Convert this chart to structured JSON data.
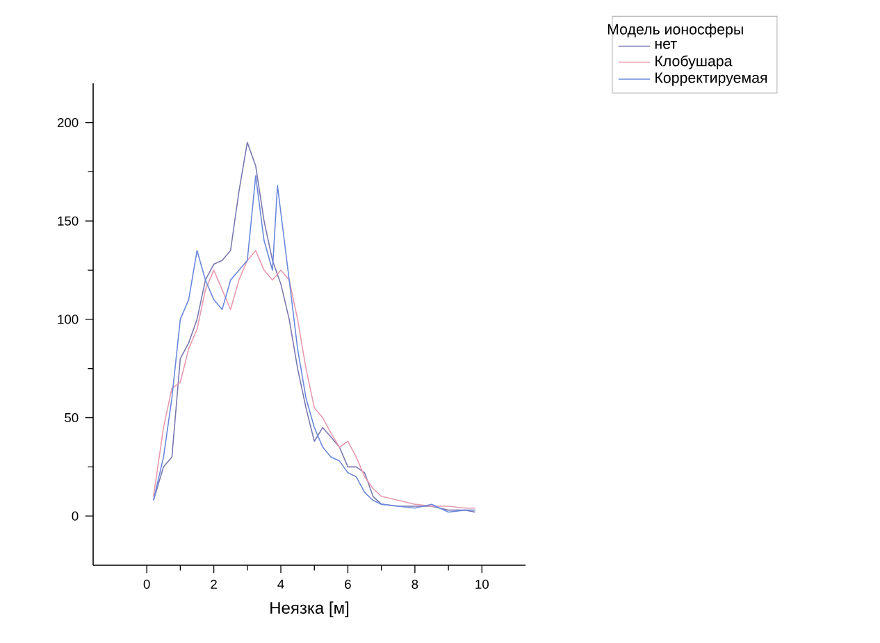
{
  "chart_data": {
    "type": "line",
    "xlabel": "Неязка [м]",
    "legend_title": "Модель ионосферы",
    "legend": "top right",
    "xlim": [
      -1.6,
      11.3
    ],
    "ylim": [
      -25,
      220
    ],
    "xticks": [
      0,
      2,
      4,
      6,
      8,
      10
    ],
    "yticks": [
      0,
      50,
      100,
      150,
      200
    ],
    "series": [
      {
        "name": "нет",
        "color": "#7a78b0",
        "x": [
          0.2,
          0.5,
          0.75,
          1.0,
          1.25,
          1.5,
          1.75,
          2.0,
          2.25,
          2.5,
          2.75,
          3.0,
          3.25,
          3.5,
          3.75,
          4.0,
          4.25,
          4.5,
          4.75,
          5.0,
          5.25,
          5.5,
          5.75,
          6.0,
          6.25,
          6.5,
          6.75,
          7.0,
          7.5,
          8.0,
          8.5,
          9.0,
          9.5,
          9.8
        ],
        "values": [
          8,
          25,
          30,
          80,
          88,
          100,
          120,
          128,
          130,
          135,
          165,
          190,
          178,
          150,
          130,
          118,
          100,
          75,
          55,
          38,
          45,
          40,
          35,
          25,
          25,
          22,
          10,
          6,
          5,
          5,
          5,
          3,
          3,
          2
        ]
      },
      {
        "name": "Клобушара",
        "color": "#e89aae",
        "x": [
          0.2,
          0.5,
          0.75,
          1.0,
          1.25,
          1.5,
          1.75,
          2.0,
          2.25,
          2.5,
          2.75,
          3.0,
          3.25,
          3.5,
          3.75,
          4.0,
          4.25,
          4.5,
          4.75,
          5.0,
          5.25,
          5.5,
          5.75,
          6.0,
          6.25,
          6.5,
          6.75,
          7.0,
          7.5,
          8.0,
          8.5,
          9.0,
          9.5,
          9.8
        ],
        "values": [
          10,
          45,
          65,
          68,
          85,
          95,
          115,
          125,
          115,
          105,
          120,
          130,
          135,
          125,
          120,
          125,
          120,
          100,
          75,
          55,
          50,
          42,
          35,
          38,
          30,
          20,
          14,
          10,
          8,
          6,
          5,
          5,
          4,
          4
        ]
      },
      {
        "name": "Корректируемая",
        "color": "#6a88dc",
        "x": [
          0.2,
          0.5,
          0.75,
          1.0,
          1.25,
          1.5,
          1.75,
          2.0,
          2.25,
          2.5,
          2.75,
          3.0,
          3.25,
          3.5,
          3.75,
          3.9,
          4.25,
          4.5,
          4.75,
          5.0,
          5.25,
          5.5,
          5.75,
          6.0,
          6.25,
          6.5,
          6.75,
          7.0,
          7.5,
          8.0,
          8.5,
          9.0,
          9.5,
          9.8
        ],
        "values": [
          8,
          30,
          60,
          100,
          110,
          135,
          120,
          110,
          105,
          120,
          125,
          130,
          173,
          140,
          125,
          168,
          120,
          85,
          60,
          45,
          35,
          30,
          28,
          22,
          20,
          12,
          8,
          6,
          5,
          4,
          6,
          2,
          3,
          3
        ]
      }
    ]
  }
}
